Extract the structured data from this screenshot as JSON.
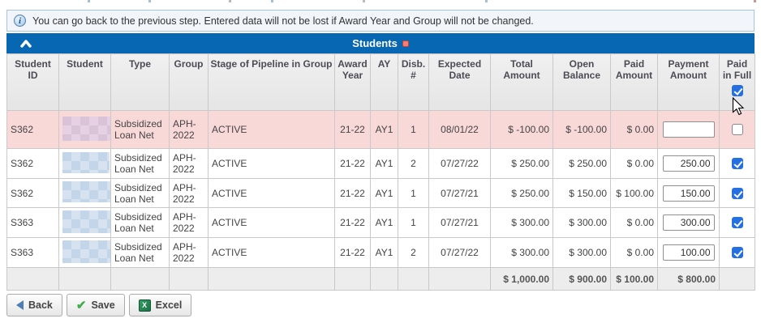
{
  "colors": {
    "accent_blue": "#0767b2",
    "row_highlight_pink": "#f9d8d8",
    "checkbox_blue": "#2470e0",
    "banner_bg": "#f2f5f9"
  },
  "banner": {
    "icon": "info-icon",
    "text": "You can go back to the previous step. Entered data will not be lost if Award Year and Group will not be changed."
  },
  "panel": {
    "title": "Students",
    "collapse_icon": "chevron-up-icon",
    "marker_icon": "red-square-icon"
  },
  "table": {
    "columns": [
      "Student ID",
      "Student",
      "Type",
      "Group",
      "Stage of Pipeline in Group",
      "Award Year",
      "AY",
      "Disb. #",
      "Expected Date",
      "Total Amount",
      "Open Balance",
      "Paid Amount",
      "Payment Amount",
      "Paid in Full"
    ],
    "select_all_checked": true,
    "rows": [
      {
        "student_id": "S362",
        "student_blur": "pink",
        "type": "Subsidized Loan Net",
        "group": "APH-2022",
        "stage": "ACTIVE",
        "award_year": "21-22",
        "ay": "AY1",
        "disb": "1",
        "expected_date": "08/01/22",
        "total_amount": "$ -100.00",
        "open_balance": "$ -100.00",
        "paid_amount": "$ 0.00",
        "payment_amount": "",
        "paid_in_full": false,
        "highlighted": true
      },
      {
        "student_id": "S362",
        "student_blur": "blue",
        "type": "Subsidized Loan Net",
        "group": "APH-2022",
        "stage": "ACTIVE",
        "award_year": "21-22",
        "ay": "AY1",
        "disb": "2",
        "expected_date": "07/27/22",
        "total_amount": "$ 250.00",
        "open_balance": "$ 250.00",
        "paid_amount": "$ 0.00",
        "payment_amount": "250.00",
        "paid_in_full": true,
        "highlighted": false
      },
      {
        "student_id": "S362",
        "student_blur": "blue",
        "type": "Subsidized Loan Net",
        "group": "APH-2022",
        "stage": "ACTIVE",
        "award_year": "21-22",
        "ay": "AY1",
        "disb": "1",
        "expected_date": "07/27/21",
        "total_amount": "$ 250.00",
        "open_balance": "$ 150.00",
        "paid_amount": "$ 100.00",
        "payment_amount": "150.00",
        "paid_in_full": true,
        "highlighted": false
      },
      {
        "student_id": "S363",
        "student_blur": "blue",
        "type": "Subsidized Loan Net",
        "group": "APH-2022",
        "stage": "ACTIVE",
        "award_year": "21-22",
        "ay": "AY1",
        "disb": "1",
        "expected_date": "07/27/21",
        "total_amount": "$ 300.00",
        "open_balance": "$ 300.00",
        "paid_amount": "$ 0.00",
        "payment_amount": "300.00",
        "paid_in_full": true,
        "highlighted": false
      },
      {
        "student_id": "S363",
        "student_blur": "blue",
        "type": "Subsidized Loan Net",
        "group": "APH-2022",
        "stage": "ACTIVE",
        "award_year": "21-22",
        "ay": "AY1",
        "disb": "2",
        "expected_date": "07/27/22",
        "total_amount": "$ 300.00",
        "open_balance": "$ 300.00",
        "paid_amount": "$ 0.00",
        "payment_amount": "100.00",
        "paid_in_full": true,
        "highlighted": false
      }
    ],
    "totals": {
      "total_amount": "$ 1,000.00",
      "open_balance": "$ 900.00",
      "paid_amount": "$ 100.00",
      "payment_amount": "$ 800.00"
    }
  },
  "buttons": {
    "back": {
      "label": "Back",
      "icon": "back-arrow-icon"
    },
    "save": {
      "label": "Save",
      "icon": "save-check-icon"
    },
    "excel": {
      "label": "Excel",
      "icon": "excel-icon"
    }
  }
}
